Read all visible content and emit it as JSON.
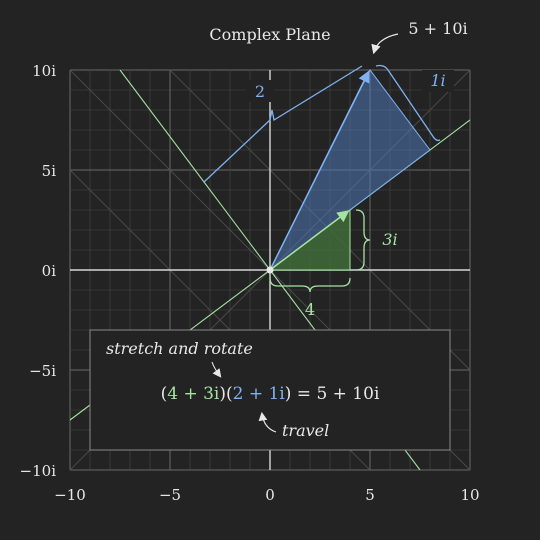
{
  "title": "Complex Plane",
  "result_label": "5 + 10i",
  "axes": {
    "x_ticks": [
      "−10",
      "−5",
      "0",
      "5",
      "10"
    ],
    "y_ticks": [
      "10i",
      "5i",
      "0i",
      "−5i",
      "−10i"
    ]
  },
  "brackets": {
    "real_a": "4",
    "imag_a": "3i",
    "real_b": "2",
    "imag_b": "1i"
  },
  "caption": {
    "stretch_note": "stretch and rotate",
    "travel_note": "travel",
    "eq_open1": "(",
    "eq_a": "4 + 3i",
    "eq_close_open": ")(",
    "eq_b": "2 + 1i",
    "eq_close2": ")",
    "eq_result": " = 5 + 10i"
  },
  "colors": {
    "background": "#232323",
    "grid_minor": "#444444",
    "grid_major": "#6a6a6a",
    "axis": "#d8d8d8",
    "green": "#a6e3a1",
    "blue": "#7fb2f0",
    "text": "#e8e8e8"
  }
}
